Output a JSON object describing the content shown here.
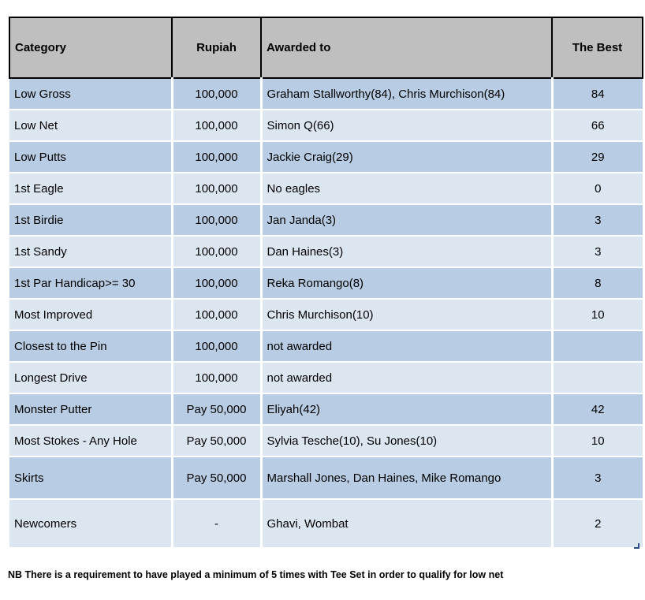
{
  "table": {
    "columns": [
      {
        "key": "category",
        "label": "Category"
      },
      {
        "key": "rupiah",
        "label": "Rupiah"
      },
      {
        "key": "awarded",
        "label": "Awarded to"
      },
      {
        "key": "best",
        "label": "The Best"
      }
    ],
    "rows": [
      {
        "category": "Low Gross",
        "rupiah": "100,000",
        "awarded": "Graham Stallworthy(84), Chris Murchison(84)",
        "best": "84"
      },
      {
        "category": "Low Net",
        "rupiah": "100,000",
        "awarded": "Simon Q(66)",
        "best": "66"
      },
      {
        "category": "Low Putts",
        "rupiah": "100,000",
        "awarded": "Jackie Craig(29)",
        "best": "29"
      },
      {
        "category": "1st Eagle",
        "rupiah": "100,000",
        "awarded": "No eagles",
        "best": "0"
      },
      {
        "category": "1st Birdie",
        "rupiah": "100,000",
        "awarded": "Jan Janda(3)",
        "best": "3"
      },
      {
        "category": "1st Sandy",
        "rupiah": "100,000",
        "awarded": "Dan Haines(3)",
        "best": "3"
      },
      {
        "category": "1st Par Handicap>= 30",
        "rupiah": "100,000",
        "awarded": "Reka Romango(8)",
        "best": "8"
      },
      {
        "category": "Most Improved",
        "rupiah": "100,000",
        "awarded": "Chris Murchison(10)",
        "best": "10"
      },
      {
        "category": "Closest to the Pin",
        "rupiah": "100,000",
        "awarded": "not awarded",
        "best": ""
      },
      {
        "category": "Longest Drive",
        "rupiah": "100,000",
        "awarded": "not awarded",
        "best": ""
      },
      {
        "category": "Monster Putter",
        "rupiah": "Pay 50,000",
        "awarded": "Eliyah(42)",
        "best": "42"
      },
      {
        "category": "Most Stokes - Any Hole",
        "rupiah": "Pay 50,000",
        "awarded": "Sylvia Tesche(10), Su Jones(10)",
        "best": "10"
      },
      {
        "category": "Skirts",
        "rupiah": "Pay 50,000",
        "awarded": "Marshall Jones, Dan Haines, Mike Romango",
        "best": "3"
      },
      {
        "category": "Newcomers",
        "rupiah": "-",
        "awarded": "Ghavi, Wombat",
        "best": "2"
      }
    ]
  },
  "footnote": "NB There is a requirement to have played a minimum of 5 times with Tee Set in order to qualify for low net",
  "colors": {
    "header_bg": "#bfbfbf",
    "row_dark": "#b8cce4",
    "row_light": "#dce6f1",
    "border": "#000000",
    "resize_handle": "#2f4d8a",
    "text": "#000000"
  }
}
